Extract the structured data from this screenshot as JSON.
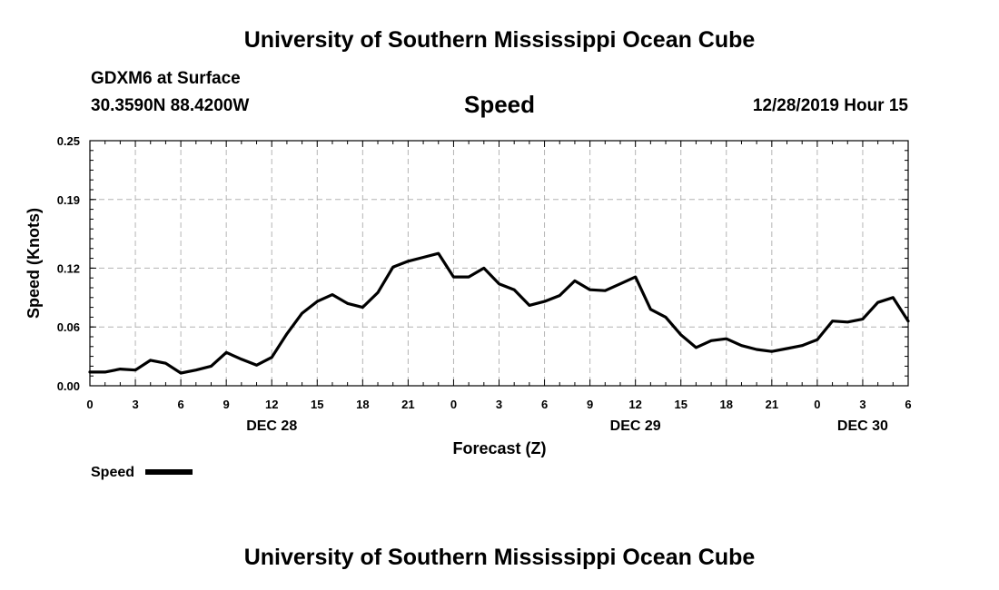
{
  "header": {
    "title_top": "University of Southern Mississippi Ocean Cube",
    "title_bottom": "University of Southern Mississippi Ocean Cube",
    "station": "GDXM6 at Surface",
    "coords": "30.3590N 88.4200W",
    "variable": "Speed",
    "datetime": "12/28/2019 Hour 15"
  },
  "chart_data": {
    "type": "line",
    "title": "Speed",
    "xlabel": "Forecast (Z)",
    "ylabel": "Speed (Knots)",
    "ylim": [
      0,
      0.25
    ],
    "yticks": [
      0.0,
      0.06,
      0.12,
      0.19,
      0.25
    ],
    "ytick_labels": [
      "0.00",
      "0.06",
      "0.12",
      "0.19",
      "0.25"
    ],
    "xlim": [
      0,
      54
    ],
    "xticks": [
      0,
      3,
      6,
      9,
      12,
      15,
      18,
      21,
      24,
      27,
      30,
      33,
      36,
      39,
      42,
      45,
      48,
      51,
      54
    ],
    "xtick_labels": [
      "0",
      "3",
      "6",
      "9",
      "12",
      "15",
      "18",
      "21",
      "0",
      "3",
      "6",
      "9",
      "12",
      "15",
      "18",
      "21",
      "0",
      "3",
      "6"
    ],
    "date_labels": [
      {
        "x": 12,
        "label": "DEC 28"
      },
      {
        "x": 36,
        "label": "DEC 29"
      },
      {
        "x": 51,
        "label": "DEC 30"
      }
    ],
    "grid": true,
    "legend": "bottom-left",
    "series": [
      {
        "name": "Speed",
        "color": "#000000",
        "x": [
          0,
          1,
          2,
          3,
          4,
          5,
          6,
          7,
          8,
          9,
          10,
          11,
          12,
          13,
          14,
          15,
          16,
          17,
          18,
          19,
          20,
          21,
          22,
          23,
          24,
          25,
          26,
          27,
          28,
          29,
          30,
          31,
          32,
          33,
          34,
          35,
          36,
          37,
          38,
          39,
          40,
          41,
          42,
          43,
          44,
          45,
          46,
          47,
          48,
          49,
          50,
          51,
          52,
          53,
          54
        ],
        "values": [
          0.014,
          0.014,
          0.017,
          0.016,
          0.026,
          0.023,
          0.013,
          0.016,
          0.02,
          0.034,
          0.027,
          0.021,
          0.029,
          0.053,
          0.074,
          0.086,
          0.093,
          0.084,
          0.08,
          0.095,
          0.121,
          0.127,
          0.131,
          0.135,
          0.111,
          0.111,
          0.12,
          0.104,
          0.098,
          0.082,
          0.086,
          0.092,
          0.107,
          0.098,
          0.097,
          0.104,
          0.111,
          0.078,
          0.07,
          0.052,
          0.039,
          0.046,
          0.048,
          0.041,
          0.037,
          0.035,
          0.038,
          0.041,
          0.047,
          0.066,
          0.065,
          0.068,
          0.085,
          0.09,
          0.066
        ]
      }
    ]
  }
}
